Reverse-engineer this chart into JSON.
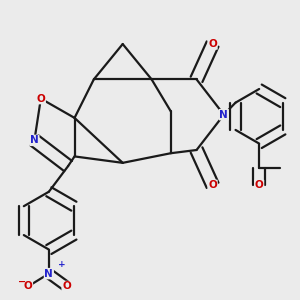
{
  "bg_color": "#ebebeb",
  "bond_color": "#1a1a1a",
  "bond_width": 1.6,
  "atom_colors": {
    "O": "#cc0000",
    "N": "#2222cc",
    "C": "#1a1a1a"
  },
  "font_size_atom": 7.5
}
